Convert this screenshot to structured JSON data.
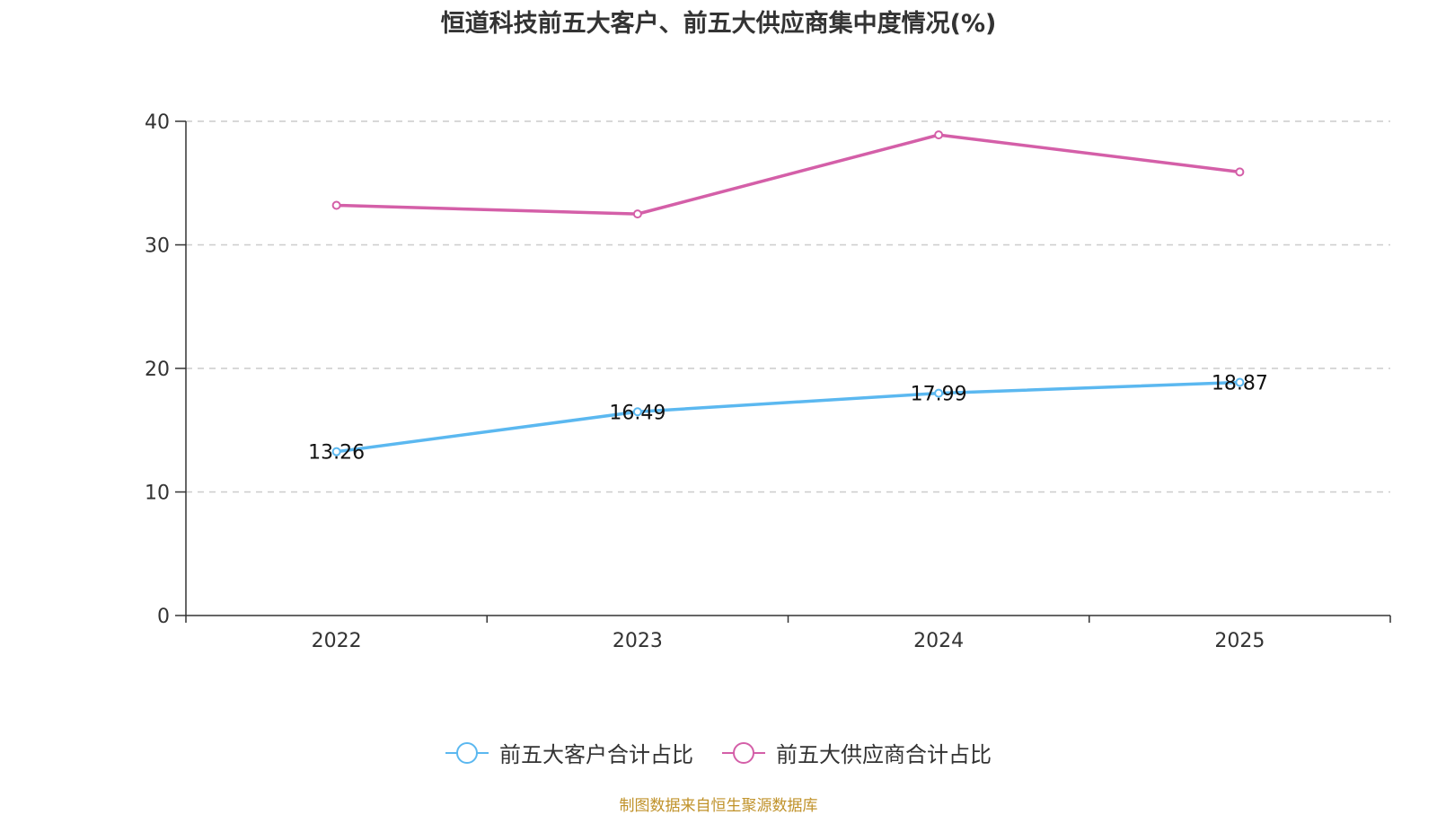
{
  "chart_data": {
    "type": "line",
    "title": "恒道科技前五大客户、前五大供应商集中度情况(%)",
    "categories": [
      "2022",
      "2023",
      "2024",
      "2025"
    ],
    "ylim": [
      0,
      40
    ],
    "yticks": [
      0,
      10,
      20,
      30,
      40
    ],
    "grid": true,
    "legend_position": "bottom",
    "series": [
      {
        "name": "前五大客户合计占比",
        "color": "#5bb8f0",
        "values": [
          13.26,
          16.49,
          17.99,
          18.87
        ],
        "labels": [
          "13.26",
          "16.49",
          "17.99",
          "18.87"
        ],
        "show_labels": true
      },
      {
        "name": "前五大供应商合计占比",
        "color": "#d45fa8",
        "values": [
          33.2,
          32.5,
          38.9,
          35.9
        ],
        "labels": [
          "",
          "",
          "",
          ""
        ],
        "show_labels": false
      }
    ]
  },
  "legend": {
    "items": [
      {
        "label": "前五大客户合计占比",
        "color": "#5bb8f0"
      },
      {
        "label": "前五大供应商合计占比",
        "color": "#d45fa8"
      }
    ]
  },
  "source_note": "制图数据来自恒生聚源数据库"
}
